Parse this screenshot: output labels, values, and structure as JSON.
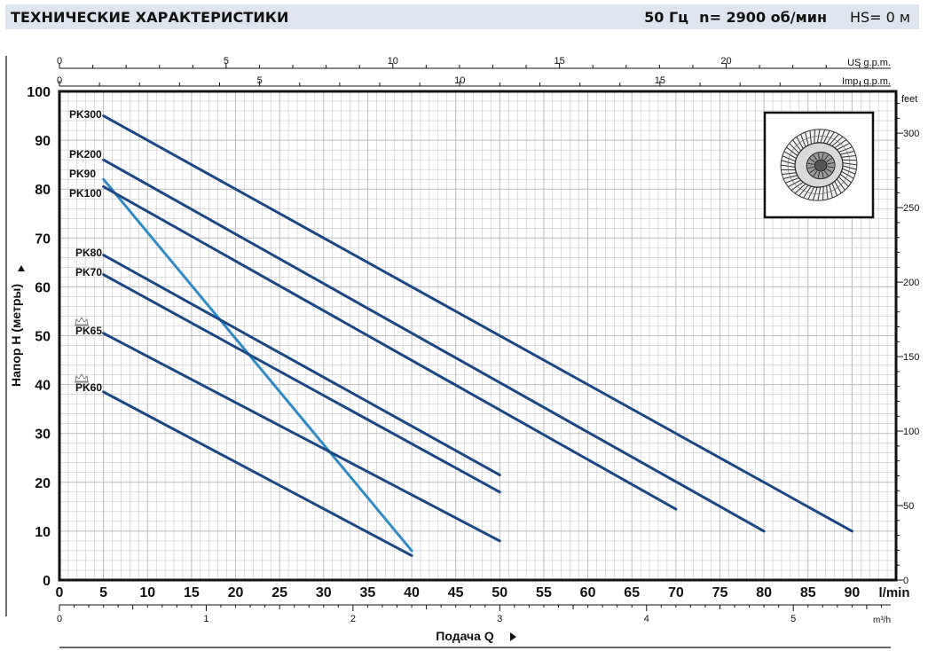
{
  "header": {
    "title": "ТЕХНИЧЕСКИЕ ХАРАКТЕРИСТИКИ",
    "frequency": "50 Гц",
    "speed": "n= 2900  об/мин",
    "hs": "HS= 0 м"
  },
  "chart_data": {
    "type": "line",
    "xlabel": "Подача Q",
    "ylabel": "Напор H (метры)",
    "x_unit": "l/min",
    "xlim": [
      0,
      95
    ],
    "ylim": [
      0,
      100
    ],
    "x_ticks": [
      0,
      5,
      10,
      15,
      20,
      25,
      30,
      35,
      40,
      45,
      50,
      55,
      60,
      65,
      70,
      75,
      80,
      85,
      90
    ],
    "y_ticks": [
      0,
      10,
      20,
      30,
      40,
      50,
      60,
      70,
      80,
      90,
      100
    ],
    "feet_axis": {
      "label": "feet",
      "ticks": [
        0,
        50,
        100,
        150,
        200,
        250,
        300
      ]
    },
    "us_gpm_axis": {
      "label": "US g.p.m.",
      "ticks": [
        0,
        5,
        10,
        15,
        20
      ]
    },
    "imp_gpm_axis": {
      "label": "Imp. g.p.m.",
      "ticks": [
        0,
        5,
        10,
        15
      ]
    },
    "m3h_axis": {
      "label": "m³/h",
      "ticks": [
        0,
        1,
        2,
        3,
        4,
        5
      ]
    },
    "colors": {
      "dark": "#1b4784",
      "light": "#2f8ac6",
      "grid": "#bcbcbc"
    },
    "series": [
      {
        "name": "PK300",
        "color": "#1b4784",
        "x": [
          5,
          90
        ],
        "y": [
          95,
          10
        ]
      },
      {
        "name": "PK200",
        "color": "#1b4784",
        "x": [
          5,
          80
        ],
        "y": [
          86,
          10
        ]
      },
      {
        "name": "PK90",
        "color": "#2f8ac6",
        "x": [
          5,
          40
        ],
        "y": [
          82,
          6
        ]
      },
      {
        "name": "PK100",
        "color": "#1b4784",
        "x": [
          5,
          70
        ],
        "y": [
          80.5,
          14.5
        ]
      },
      {
        "name": "PK80",
        "color": "#1b4784",
        "x": [
          5,
          50
        ],
        "y": [
          66.5,
          21.5
        ]
      },
      {
        "name": "PK70",
        "color": "#1b4784",
        "x": [
          5,
          50
        ],
        "y": [
          62.5,
          18
        ]
      },
      {
        "name": "PK65",
        "color": "#1b4784",
        "x": [
          5,
          50
        ],
        "y": [
          50.5,
          8
        ]
      },
      {
        "name": "PK60",
        "color": "#1b4784",
        "x": [
          5,
          40
        ],
        "y": [
          38.5,
          5
        ]
      }
    ],
    "crown_marked": [
      "PK65",
      "PK60"
    ],
    "inset_icon": "pump-impeller-icon"
  }
}
